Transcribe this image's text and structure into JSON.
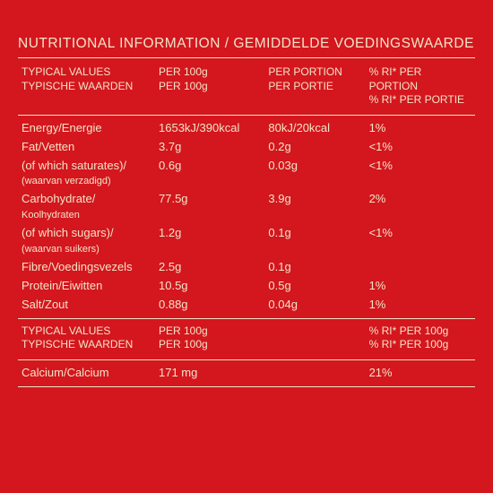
{
  "title": "NUTRITIONAL INFORMATION / GEMIDDELDE  VOEDINGSWAARDE",
  "headers1": {
    "c1a": "TYPICAL VALUES",
    "c1b": "TYPISCHE WAARDEN",
    "c2a": "PER 100g",
    "c2b": "PER 100g",
    "c3a": "PER PORTION",
    "c3b": "PER PORTIE",
    "c4a": "% RI* PER PORTION",
    "c4b": "% RI* PER PORTIE"
  },
  "rows": [
    {
      "label": "Energy/Energie",
      "per100": "1653kJ/390kcal",
      "portion": "80kJ/20kcal",
      "ri": "1%"
    },
    {
      "label": "Fat/Vetten",
      "per100": "3.7g",
      "portion": "0.2g",
      "ri": "<1%"
    },
    {
      "label": "(of which saturates)/",
      "sub": "(waarvan verzadigd)",
      "per100": "0.6g",
      "portion": "0.03g",
      "ri": "<1%"
    },
    {
      "label": "Carbohydrate/",
      "sub": "Koolhydraten",
      "per100": "77.5g",
      "portion": "3.9g",
      "ri": "2%"
    },
    {
      "label": "(of which sugars)/",
      "sub": "(waarvan suikers)",
      "per100": "1.2g",
      "portion": "0.1g",
      "ri": "<1%"
    },
    {
      "label": "Fibre/Voedingsvezels",
      "per100": "2.5g",
      "portion": "0.1g",
      "ri": ""
    },
    {
      "label": "Protein/Eiwitten",
      "per100": "10.5g",
      "portion": "0.5g",
      "ri": "1%"
    },
    {
      "label": "Salt/Zout",
      "per100": "0.88g",
      "portion": "0.04g",
      "ri": "1%"
    }
  ],
  "headers2": {
    "c1a": "TYPICAL VALUES",
    "c1b": "TYPISCHE WAARDEN",
    "c2a": "PER 100g",
    "c2b": "PER 100g",
    "c4a": "% RI* PER 100g",
    "c4b": "% RI* PER 100g"
  },
  "calcium": {
    "label": "Calcium/Calcium",
    "per100": "171 mg",
    "ri": "21%"
  },
  "colors": {
    "background": "#d4161e",
    "text": "#f0e4c8"
  }
}
